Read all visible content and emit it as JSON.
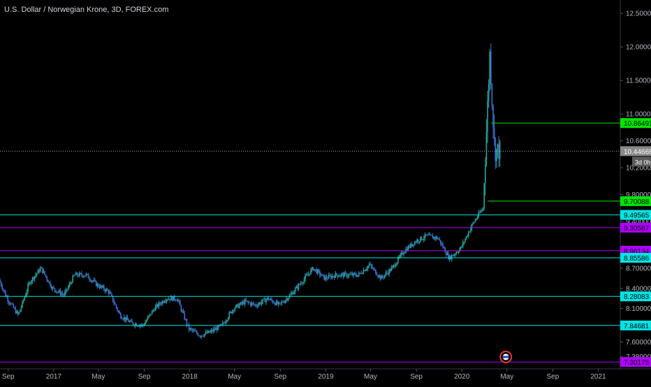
{
  "title": "U.S. Dollar / Norwegian Krone, 3D, FOREX.com",
  "colors": {
    "background": "#000000",
    "up_candle": "#26a69a",
    "down_candle": "#3d6fd1",
    "axis_text": "#b2b5be",
    "gridline": "#ffffff",
    "green_level": "#00e600",
    "cyan_level": "#00e5e5",
    "purple_level": "#b000ff",
    "price_badge": "#888888"
  },
  "chart_data": {
    "type": "candlestick",
    "symbol": "USDNOK",
    "timeframe": "3D",
    "ylim": [
      7.2,
      12.7
    ],
    "y_ticks": [
      "12.50000",
      "12.00000",
      "11.50000",
      "11.00000",
      "10.60000",
      "10.20000",
      "9.80000",
      "9.40000",
      "8.70000",
      "8.40000",
      "8.10000",
      "7.60000",
      "7.38000"
    ],
    "x_ticks": [
      "Sep",
      "2017",
      "May",
      "Sep",
      "2018",
      "May",
      "Sep",
      "2019",
      "May",
      "Sep",
      "2020",
      "May",
      "Sep",
      "2021"
    ],
    "last_price": "10.44669",
    "countdown": "3d 0h",
    "levels": [
      {
        "label": "10.86491",
        "color": "green"
      },
      {
        "label": "9.70088",
        "color": "green"
      },
      {
        "label": "9.49565",
        "color": "cyan"
      },
      {
        "label": "9.30587",
        "color": "purple"
      },
      {
        "label": "8.96134",
        "color": "purple"
      },
      {
        "label": "8.85586",
        "color": "cyan"
      },
      {
        "label": "8.28083",
        "color": "cyan"
      },
      {
        "label": "7.84681",
        "color": "cyan"
      },
      {
        "label": "7.30175",
        "color": "purple"
      }
    ],
    "price_series": {
      "dates": [
        "2016-08",
        "2016-09",
        "2016-10",
        "2016-11",
        "2016-12",
        "2017-01",
        "2017-02",
        "2017-03",
        "2017-04",
        "2017-05",
        "2017-06",
        "2017-07",
        "2017-08",
        "2017-09",
        "2017-10",
        "2017-11",
        "2017-12",
        "2018-01",
        "2018-02",
        "2018-03",
        "2018-04",
        "2018-05",
        "2018-06",
        "2018-07",
        "2018-08",
        "2018-09",
        "2018-10",
        "2018-11",
        "2018-12",
        "2019-01",
        "2019-02",
        "2019-03",
        "2019-04",
        "2019-05",
        "2019-06",
        "2019-07",
        "2019-08",
        "2019-09",
        "2019-10",
        "2019-11",
        "2019-12",
        "2020-01",
        "2020-02",
        "2020-03",
        "2020-03-19",
        "2020-04"
      ],
      "values": [
        8.65,
        8.25,
        8.0,
        8.5,
        8.7,
        8.4,
        8.3,
        8.6,
        8.6,
        8.45,
        8.35,
        8.0,
        7.88,
        7.85,
        8.1,
        8.25,
        8.25,
        7.8,
        7.7,
        7.75,
        7.85,
        8.1,
        8.2,
        8.15,
        8.25,
        8.15,
        8.3,
        8.5,
        8.7,
        8.55,
        8.6,
        8.6,
        8.6,
        8.75,
        8.55,
        8.7,
        8.95,
        9.1,
        9.18,
        9.15,
        8.85,
        9.0,
        9.35,
        9.6,
        11.9,
        10.45
      ]
    }
  }
}
